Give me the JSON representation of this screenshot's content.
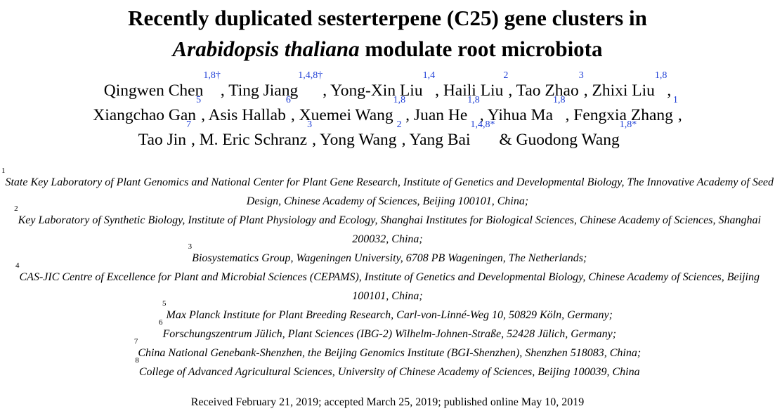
{
  "title": {
    "line1": "Recently duplicated sesterterpene (C25) gene clusters in",
    "line2_italic": "Arabidopsis thaliana",
    "line2_rest": " modulate root microbiota"
  },
  "authors": [
    {
      "name": "Qingwen Chen",
      "sup": "1,8†",
      "sep": ", "
    },
    {
      "name": "Ting Jiang",
      "sup": "1,4,8†",
      "sep": ", "
    },
    {
      "name": "Yong-Xin Liu",
      "sup": "1,4",
      "sep": ", "
    },
    {
      "name": "Haili Liu",
      "sup": "2",
      "sep": ", "
    },
    {
      "name": "Tao Zhao",
      "sup": "3",
      "sep": ", "
    },
    {
      "name": "Zhixi Liu",
      "sup": "1,8",
      "sep": ","
    },
    {
      "name": "Xiangchao Gan",
      "sup": "5",
      "sep": ", "
    },
    {
      "name": "Asis Hallab",
      "sup": "6",
      "sep": ", "
    },
    {
      "name": "Xuemei Wang",
      "sup": "1,8",
      "sep": ", "
    },
    {
      "name": "Juan He",
      "sup": "1,8",
      "sep": ", "
    },
    {
      "name": "Yihua Ma",
      "sup": "1,8",
      "sep": ", "
    },
    {
      "name": "Fengxia Zhang",
      "sup": "1",
      "sep": ","
    },
    {
      "name": "Tao Jin",
      "sup": "7",
      "sep": ", "
    },
    {
      "name": "M. Eric Schranz",
      "sup": "3",
      "sep": ", "
    },
    {
      "name": "Yong Wang",
      "sup": "2",
      "sep": ", "
    },
    {
      "name": "Yang Bai",
      "sup": "1,4,8*",
      "sep": " & "
    },
    {
      "name": "Guodong Wang",
      "sup": "1,8*",
      "sep": ""
    }
  ],
  "affiliations": [
    {
      "num": "1",
      "text": "State Key Laboratory of Plant Genomics and National Center for Plant Gene Research, Institute of Genetics and Developmental Biology, The Innovative Academy of Seed Design, Chinese Academy of Sciences, Beijing 100101, China;"
    },
    {
      "num": "2",
      "text": "Key Laboratory of Synthetic Biology, Institute of Plant Physiology and Ecology, Shanghai Institutes for Biological Sciences, Chinese Academy of Sciences, Shanghai 200032, China;"
    },
    {
      "num": "3",
      "text": "Biosystematics Group, Wageningen University, 6708 PB Wageningen, The Netherlands;"
    },
    {
      "num": "4",
      "text": "CAS-JIC Centre of Excellence for Plant and Microbial Sciences (CEPAMS), Institute of Genetics and Developmental Biology, Chinese Academy of Sciences, Beijing 100101, China;"
    },
    {
      "num": "5",
      "text": "Max Planck Institute for Plant Breeding Research, Carl-von-Linné-Weg 10, 50829 Köln, Germany;"
    },
    {
      "num": "6",
      "text": "Forschungszentrum Jülich, Plant Sciences (IBG-2) Wilhelm-Johnen-Straße, 52428 Jülich, Germany;"
    },
    {
      "num": "7",
      "text": "China National Genebank-Shenzhen, the Beijing Genomics Institute (BGI-Shenzhen), Shenzhen 518083, China;"
    },
    {
      "num": "8",
      "text": "College of Advanced Agricultural Sciences, University of Chinese Academy of Sciences, Beijing 100039, China"
    }
  ],
  "received": "Received February 21, 2019; accepted March 25, 2019; published online May 10, 2019",
  "colors": {
    "superscript": "#1f3fd6",
    "text": "#000000",
    "background": "#ffffff"
  }
}
